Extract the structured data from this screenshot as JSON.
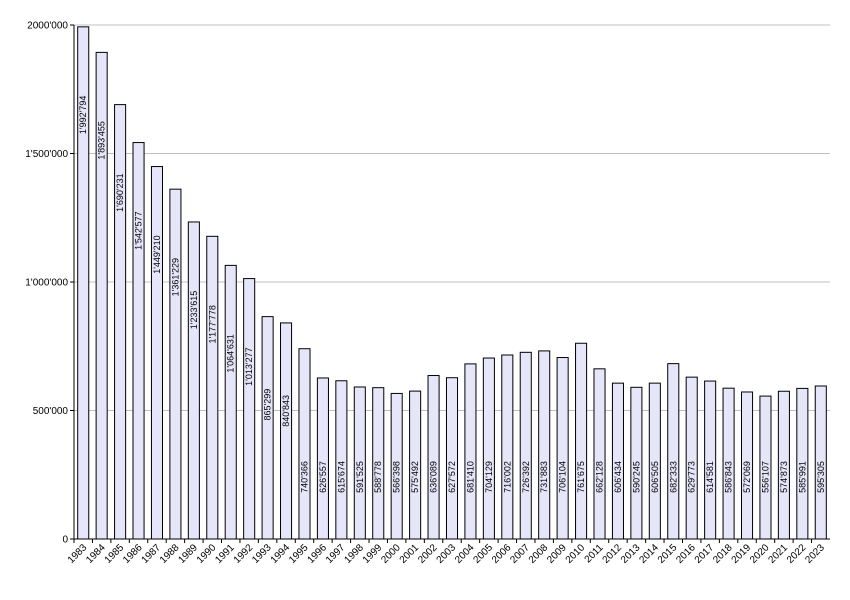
{
  "chart_data": {
    "type": "bar",
    "title": "",
    "xlabel": "",
    "ylabel": "",
    "ylim": [
      0,
      2000000
    ],
    "yticks": [
      0,
      500000,
      1000000,
      1500000,
      2000000
    ],
    "ytick_labels": [
      "0",
      "500'000",
      "1'000'000",
      "1'500'000",
      "2000'000"
    ],
    "grid": true,
    "bar_color": "#e6e6fa",
    "categories": [
      "1983",
      "1984",
      "1985",
      "1986",
      "1987",
      "1988",
      "1989",
      "1990",
      "1991",
      "1992",
      "1993",
      "1994",
      "1995",
      "1996",
      "1997",
      "1998",
      "1999",
      "2000",
      "2001",
      "2002",
      "2003",
      "2004",
      "2005",
      "2006",
      "2007",
      "2008",
      "2009",
      "2010",
      "2011",
      "2012",
      "2013",
      "2014",
      "2015",
      "2016",
      "2017",
      "2018",
      "2019",
      "2020",
      "2021",
      "2022",
      "2023"
    ],
    "values": [
      1992794,
      1893455,
      1690231,
      1542577,
      1449210,
      1361229,
      1233615,
      1177778,
      1064631,
      1013277,
      865299,
      840843,
      740366,
      626557,
      615674,
      591525,
      588778,
      566398,
      575492,
      636089,
      627572,
      681410,
      704129,
      716002,
      726392,
      731883,
      706104,
      761675,
      662128,
      606434,
      590245,
      606505,
      682333,
      629773,
      614581,
      586843,
      572069,
      556107,
      574873,
      585991,
      595305
    ],
    "value_labels": [
      "1'992'794",
      "1'893'455",
      "1'690'231",
      "1'542'577",
      "1'449'210",
      "1'361'229",
      "1'233'615",
      "1'177'778",
      "1'064'631",
      "1'013'277",
      "865'299",
      "840'843",
      "740'366",
      "626'557",
      "615'674",
      "591'525",
      "588'778",
      "566'398",
      "575'492",
      "636'089",
      "627'572",
      "681'410",
      "704'129",
      "716'002",
      "726'392",
      "731'883",
      "706'104",
      "761'675",
      "662'128",
      "606'434",
      "590'245",
      "606'505",
      "682'333",
      "629'773",
      "614'581",
      "586'843",
      "572'069",
      "556'107",
      "574'873",
      "585'991",
      "595'305"
    ]
  }
}
